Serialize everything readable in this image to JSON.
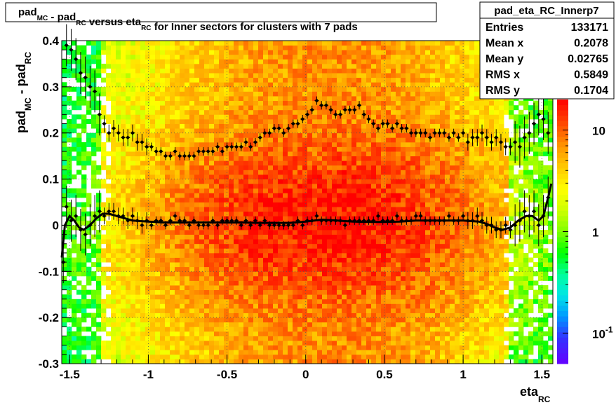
{
  "chart_data": {
    "type": "heatmap",
    "title": {
      "parts": [
        {
          "t": "pad",
          "sub": "MC"
        },
        {
          "t": " - pad",
          "sub": "RC"
        },
        {
          "t": " versus eta",
          "sub": "RC"
        },
        {
          "t": " for Inner sectors for clusters with 7 pads",
          "sub": ""
        }
      ]
    },
    "xlabel": {
      "main": "eta",
      "sub": "RC"
    },
    "ylabel": {
      "part1": "pad",
      "sub1": "MC",
      "part2": " - pad",
      "sub2": "RC"
    },
    "xlim": [
      -1.55,
      1.57
    ],
    "ylim": [
      -0.3,
      0.4
    ],
    "x_ticks": [
      {
        "v": -1.5,
        "label": "-1.5"
      },
      {
        "v": -1,
        "label": "-1"
      },
      {
        "v": -0.5,
        "label": "-0.5"
      },
      {
        "v": 0,
        "label": "0"
      },
      {
        "v": 0.5,
        "label": "0.5"
      },
      {
        "v": 1,
        "label": "1"
      },
      {
        "v": 1.5,
        "label": "1.5"
      }
    ],
    "y_ticks": [
      {
        "v": -0.3,
        "label": "-0.3"
      },
      {
        "v": -0.2,
        "label": "-0.2"
      },
      {
        "v": -0.1,
        "label": "-0.1"
      },
      {
        "v": 0,
        "label": "0"
      },
      {
        "v": 0.1,
        "label": "0.1"
      },
      {
        "v": 0.2,
        "label": "0.2"
      },
      {
        "v": 0.3,
        "label": "0.3"
      },
      {
        "v": 0.4,
        "label": "0.4"
      }
    ],
    "grid": true,
    "log_z": true,
    "zlim": [
      0.05,
      20
    ],
    "z_ticks": [
      {
        "v": 0.1,
        "label": "10",
        "sup": "-1"
      },
      {
        "v": 1,
        "label": "1",
        "sup": ""
      },
      {
        "v": 10,
        "label": "10",
        "sup": ""
      }
    ],
    "mean_profile": [
      [
        -1.54,
        -0.08
      ],
      [
        -1.52,
        0.04
      ],
      [
        -1.49,
        0.01
      ],
      [
        -1.46,
        0.02
      ],
      [
        -1.43,
        -0.01
      ],
      [
        -1.4,
        -0.02
      ],
      [
        -1.37,
        0.0
      ],
      [
        -1.34,
        0.02
      ],
      [
        -1.31,
        0.03
      ],
      [
        -1.28,
        0.02
      ],
      [
        -1.25,
        0.03
      ],
      [
        -1.22,
        0.03
      ],
      [
        -1.19,
        0.02
      ],
      [
        -1.16,
        0.02
      ],
      [
        -1.13,
        0.01
      ],
      [
        -1.1,
        0.02
      ],
      [
        -1.07,
        0.01
      ],
      [
        -1.04,
        0.0
      ],
      [
        -1.01,
        0.01
      ],
      [
        -0.98,
        0.0
      ],
      [
        -0.95,
        0.01
      ],
      [
        -0.92,
        0.01
      ],
      [
        -0.89,
        0.0
      ],
      [
        -0.86,
        0.01
      ],
      [
        -0.83,
        0.02
      ],
      [
        -0.8,
        0.01
      ],
      [
        -0.77,
        0.01
      ],
      [
        -0.74,
        0.0
      ],
      [
        -0.71,
        0.01
      ],
      [
        -0.68,
        0.0
      ],
      [
        -0.65,
        0.0
      ],
      [
        -0.62,
        0.0
      ],
      [
        -0.59,
        0.01
      ],
      [
        -0.56,
        0.0
      ],
      [
        -0.53,
        0.01
      ],
      [
        -0.5,
        0.01
      ],
      [
        -0.47,
        0.01
      ],
      [
        -0.44,
        0.01
      ],
      [
        -0.41,
        0.0
      ],
      [
        -0.38,
        0.01
      ],
      [
        -0.35,
        0.0
      ],
      [
        -0.32,
        0.01
      ],
      [
        -0.29,
        0.0
      ],
      [
        -0.26,
        0.01
      ],
      [
        -0.23,
        0.0
      ],
      [
        -0.2,
        0.0
      ],
      [
        -0.17,
        0.0
      ],
      [
        -0.14,
        0.0
      ],
      [
        -0.11,
        0.0
      ],
      [
        -0.08,
        0.0
      ],
      [
        -0.05,
        0.01
      ],
      [
        -0.02,
        0.0
      ],
      [
        0.01,
        0.01
      ],
      [
        0.04,
        0.01
      ],
      [
        0.07,
        0.02
      ],
      [
        0.1,
        0.01
      ],
      [
        0.13,
        0.01
      ],
      [
        0.16,
        0.01
      ],
      [
        0.19,
        0.01
      ],
      [
        0.22,
        0.01
      ],
      [
        0.25,
        0.0
      ],
      [
        0.28,
        0.01
      ],
      [
        0.31,
        0.01
      ],
      [
        0.34,
        0.01
      ],
      [
        0.37,
        0.01
      ],
      [
        0.4,
        0.01
      ],
      [
        0.43,
        0.01
      ],
      [
        0.46,
        0.02
      ],
      [
        0.49,
        0.01
      ],
      [
        0.52,
        0.01
      ],
      [
        0.55,
        0.01
      ],
      [
        0.58,
        0.02
      ],
      [
        0.61,
        0.01
      ],
      [
        0.64,
        0.01
      ],
      [
        0.67,
        0.01
      ],
      [
        0.7,
        0.02
      ],
      [
        0.73,
        0.02
      ],
      [
        0.76,
        0.01
      ],
      [
        0.79,
        0.01
      ],
      [
        0.82,
        0.01
      ],
      [
        0.85,
        0.01
      ],
      [
        0.88,
        0.01
      ],
      [
        0.91,
        0.02
      ],
      [
        0.94,
        0.01
      ],
      [
        0.97,
        0.01
      ],
      [
        1.0,
        0.02
      ],
      [
        1.03,
        0.01
      ],
      [
        1.06,
        0.01
      ],
      [
        1.09,
        0.02
      ],
      [
        1.12,
        0.01
      ],
      [
        1.15,
        0.0
      ],
      [
        1.18,
        0.0
      ],
      [
        1.21,
        -0.01
      ],
      [
        1.24,
        -0.01
      ],
      [
        1.27,
        0.0
      ],
      [
        1.3,
        -0.01
      ],
      [
        1.33,
        0.0
      ],
      [
        1.36,
        0.01
      ],
      [
        1.39,
        0.03
      ],
      [
        1.42,
        0.02
      ],
      [
        1.45,
        0.03
      ],
      [
        1.48,
        0.0
      ],
      [
        1.51,
        0.02
      ],
      [
        1.54,
        0.06
      ]
    ],
    "rms_profile": [
      [
        -1.52,
        0.39
      ],
      [
        -1.49,
        0.38
      ],
      [
        -1.46,
        0.36
      ],
      [
        -1.43,
        0.33
      ],
      [
        -1.4,
        0.32
      ],
      [
        -1.37,
        0.3
      ],
      [
        -1.34,
        0.29
      ],
      [
        -1.31,
        0.24
      ],
      [
        -1.28,
        0.22
      ],
      [
        -1.25,
        0.2
      ],
      [
        -1.22,
        0.21
      ],
      [
        -1.19,
        0.2
      ],
      [
        -1.16,
        0.19
      ],
      [
        -1.13,
        0.19
      ],
      [
        -1.1,
        0.2
      ],
      [
        -1.07,
        0.18
      ],
      [
        -1.04,
        0.18
      ],
      [
        -1.01,
        0.17
      ],
      [
        -0.98,
        0.17
      ],
      [
        -0.95,
        0.16
      ],
      [
        -0.92,
        0.16
      ],
      [
        -0.89,
        0.15
      ],
      [
        -0.86,
        0.15
      ],
      [
        -0.83,
        0.16
      ],
      [
        -0.8,
        0.15
      ],
      [
        -0.77,
        0.15
      ],
      [
        -0.74,
        0.15
      ],
      [
        -0.71,
        0.15
      ],
      [
        -0.68,
        0.16
      ],
      [
        -0.65,
        0.16
      ],
      [
        -0.62,
        0.16
      ],
      [
        -0.59,
        0.16
      ],
      [
        -0.56,
        0.17
      ],
      [
        -0.53,
        0.16
      ],
      [
        -0.5,
        0.17
      ],
      [
        -0.47,
        0.17
      ],
      [
        -0.44,
        0.17
      ],
      [
        -0.41,
        0.17
      ],
      [
        -0.38,
        0.18
      ],
      [
        -0.35,
        0.17
      ],
      [
        -0.32,
        0.18
      ],
      [
        -0.29,
        0.19
      ],
      [
        -0.26,
        0.2
      ],
      [
        -0.23,
        0.2
      ],
      [
        -0.2,
        0.21
      ],
      [
        -0.17,
        0.21
      ],
      [
        -0.14,
        0.2
      ],
      [
        -0.11,
        0.21
      ],
      [
        -0.08,
        0.22
      ],
      [
        -0.05,
        0.22
      ],
      [
        -0.02,
        0.23
      ],
      [
        0.01,
        0.24
      ],
      [
        0.04,
        0.25
      ],
      [
        0.07,
        0.27
      ],
      [
        0.1,
        0.26
      ],
      [
        0.13,
        0.26
      ],
      [
        0.16,
        0.25
      ],
      [
        0.19,
        0.24
      ],
      [
        0.22,
        0.24
      ],
      [
        0.25,
        0.25
      ],
      [
        0.28,
        0.25
      ],
      [
        0.31,
        0.25
      ],
      [
        0.34,
        0.26
      ],
      [
        0.37,
        0.24
      ],
      [
        0.4,
        0.23
      ],
      [
        0.43,
        0.22
      ],
      [
        0.46,
        0.21
      ],
      [
        0.49,
        0.22
      ],
      [
        0.52,
        0.22
      ],
      [
        0.55,
        0.21
      ],
      [
        0.58,
        0.22
      ],
      [
        0.61,
        0.21
      ],
      [
        0.64,
        0.21
      ],
      [
        0.67,
        0.2
      ],
      [
        0.7,
        0.2
      ],
      [
        0.73,
        0.2
      ],
      [
        0.76,
        0.2
      ],
      [
        0.79,
        0.19
      ],
      [
        0.82,
        0.2
      ],
      [
        0.85,
        0.2
      ],
      [
        0.88,
        0.2
      ],
      [
        0.91,
        0.19
      ],
      [
        0.94,
        0.2
      ],
      [
        0.97,
        0.19
      ],
      [
        1.0,
        0.2
      ],
      [
        1.03,
        0.18
      ],
      [
        1.06,
        0.19
      ],
      [
        1.09,
        0.19
      ],
      [
        1.12,
        0.2
      ],
      [
        1.15,
        0.19
      ],
      [
        1.18,
        0.18
      ],
      [
        1.21,
        0.19
      ],
      [
        1.24,
        0.18
      ],
      [
        1.27,
        0.17
      ],
      [
        1.3,
        0.17
      ],
      [
        1.33,
        0.18
      ],
      [
        1.36,
        0.17
      ],
      [
        1.39,
        0.19
      ],
      [
        1.42,
        0.2
      ],
      [
        1.45,
        0.22
      ],
      [
        1.48,
        0.24
      ],
      [
        1.51,
        0.23
      ],
      [
        1.54,
        0.2
      ]
    ],
    "fit_curve": [
      [
        -1.55,
        -0.07
      ],
      [
        -1.53,
        0.0
      ],
      [
        -1.5,
        0.02
      ],
      [
        -1.47,
        0.01
      ],
      [
        -1.44,
        -0.005
      ],
      [
        -1.41,
        -0.01
      ],
      [
        -1.37,
        0.0
      ],
      [
        -1.33,
        0.015
      ],
      [
        -1.29,
        0.025
      ],
      [
        -1.25,
        0.025
      ],
      [
        -1.2,
        0.02
      ],
      [
        -1.15,
        0.015
      ],
      [
        -1.1,
        0.01
      ],
      [
        -1.0,
        0.008
      ],
      [
        -0.9,
        0.006
      ],
      [
        -0.8,
        0.006
      ],
      [
        -0.7,
        0.006
      ],
      [
        -0.6,
        0.006
      ],
      [
        -0.5,
        0.006
      ],
      [
        -0.4,
        0.006
      ],
      [
        -0.3,
        0.005
      ],
      [
        -0.2,
        0.005
      ],
      [
        -0.1,
        0.005
      ],
      [
        0.0,
        0.008
      ],
      [
        0.1,
        0.012
      ],
      [
        0.2,
        0.01
      ],
      [
        0.3,
        0.008
      ],
      [
        0.4,
        0.007
      ],
      [
        0.5,
        0.007
      ],
      [
        0.6,
        0.008
      ],
      [
        0.7,
        0.01
      ],
      [
        0.8,
        0.01
      ],
      [
        0.9,
        0.01
      ],
      [
        1.0,
        0.01
      ],
      [
        1.1,
        0.008
      ],
      [
        1.15,
        0.003
      ],
      [
        1.2,
        -0.005
      ],
      [
        1.25,
        -0.01
      ],
      [
        1.3,
        -0.005
      ],
      [
        1.35,
        0.01
      ],
      [
        1.4,
        0.02
      ],
      [
        1.44,
        0.02
      ],
      [
        1.48,
        0.01
      ],
      [
        1.51,
        0.02
      ],
      [
        1.54,
        0.06
      ],
      [
        1.56,
        0.09
      ]
    ],
    "stats_box": {
      "title": "pad_eta_RC_Innerp7",
      "rows": [
        {
          "label": "Entries",
          "value": "133171"
        },
        {
          "label": "Mean x",
          "value": "0.2078"
        },
        {
          "label": "Mean y",
          "value": "0.02765"
        },
        {
          "label": "RMS x",
          "value": "0.5849"
        },
        {
          "label": "RMS y",
          "value": "0.1704"
        }
      ]
    }
  }
}
